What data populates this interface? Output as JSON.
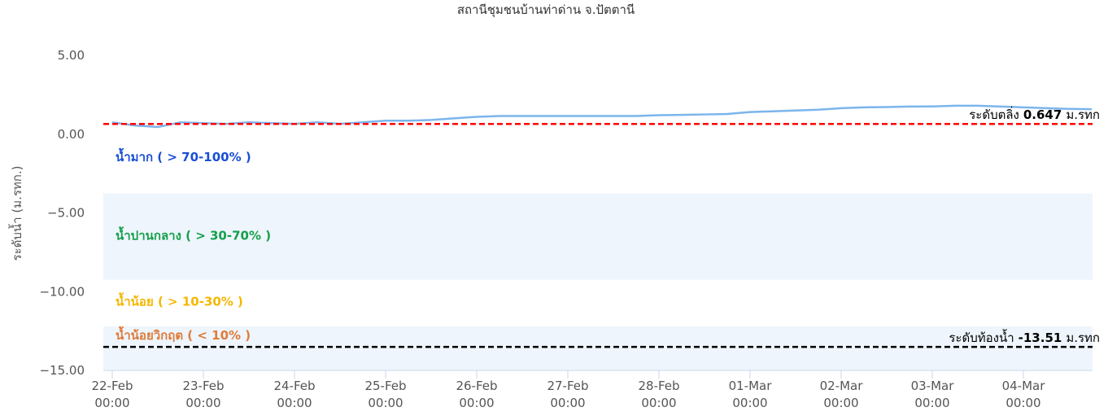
{
  "chart_data": {
    "type": "line",
    "title": "สถานีชุมชนบ้านท่าด่าน จ.ปัตตานี",
    "y_axis_label": "ระดับน้ำ (ม.รทก.)",
    "x": [
      "22-Feb 00:00",
      "22-Feb 06:00",
      "22-Feb 12:00",
      "22-Feb 18:00",
      "23-Feb 00:00",
      "23-Feb 06:00",
      "23-Feb 12:00",
      "23-Feb 18:00",
      "24-Feb 00:00",
      "24-Feb 06:00",
      "24-Feb 12:00",
      "24-Feb 18:00",
      "25-Feb 00:00",
      "25-Feb 06:00",
      "25-Feb 12:00",
      "25-Feb 18:00",
      "26-Feb 00:00",
      "26-Feb 06:00",
      "26-Feb 12:00",
      "26-Feb 18:00",
      "27-Feb 00:00",
      "27-Feb 06:00",
      "27-Feb 12:00",
      "27-Feb 18:00",
      "28-Feb 00:00",
      "28-Feb 06:00",
      "28-Feb 12:00",
      "28-Feb 18:00",
      "01-Mar 00:00",
      "01-Mar 06:00",
      "01-Mar 12:00",
      "01-Mar 18:00",
      "02-Mar 00:00",
      "02-Mar 06:00",
      "02-Mar 12:00",
      "02-Mar 18:00",
      "03-Mar 00:00",
      "03-Mar 06:00",
      "03-Mar 12:00",
      "03-Mar 18:00",
      "04-Mar 00:00",
      "04-Mar 06:00",
      "04-Mar 12:00",
      "04-Mar 18:00"
    ],
    "xticks": [
      "22-Feb 00:00",
      "23-Feb 00:00",
      "24-Feb 00:00",
      "25-Feb 00:00",
      "26-Feb 00:00",
      "27-Feb 00:00",
      "28-Feb 00:00",
      "01-Mar 00:00",
      "02-Mar 00:00",
      "03-Mar 00:00",
      "04-Mar 00:00"
    ],
    "series": [
      {
        "name": "ระดับน้ำ",
        "color": "#7cb5ec",
        "values": [
          0.75,
          0.55,
          0.45,
          0.75,
          0.7,
          0.65,
          0.75,
          0.7,
          0.65,
          0.75,
          0.65,
          0.75,
          0.85,
          0.85,
          0.9,
          1.0,
          1.1,
          1.15,
          1.15,
          1.15,
          1.15,
          1.15,
          1.15,
          1.15,
          1.2,
          1.22,
          1.25,
          1.28,
          1.4,
          1.45,
          1.5,
          1.55,
          1.65,
          1.7,
          1.72,
          1.75,
          1.76,
          1.8,
          1.8,
          1.75,
          1.7,
          1.65,
          1.6,
          1.58
        ]
      }
    ],
    "ylim": [
      -15,
      5
    ],
    "yticks": [
      {
        "value": 5,
        "label": "5.00"
      },
      {
        "value": 0,
        "label": "0.00"
      },
      {
        "value": -5,
        "label": "−5.00"
      },
      {
        "value": -10,
        "label": "−10.00"
      },
      {
        "value": -15,
        "label": "−15.00"
      }
    ],
    "grid": false,
    "plot_bands": [
      {
        "from": -3.77,
        "to": 5,
        "color": "#ffffff",
        "label": "น้ำมาก ( > 70-100% )",
        "label_color": "#1a4fd6"
      },
      {
        "from": -9.25,
        "to": -3.77,
        "color": "#eef5fc",
        "label": "น้ำปานกลาง ( > 30-70% )",
        "label_color": "#13a04a"
      },
      {
        "from": -12.2,
        "to": -9.25,
        "color": "#ffffff",
        "label": "น้ำน้อย ( > 10-30% )",
        "label_color": "#f5b700"
      },
      {
        "from": -15,
        "to": -12.2,
        "color": "#eef5fc",
        "label": "น้ำน้อยวิกฤต ( < 10% )",
        "label_color": "#e07b39"
      }
    ],
    "plot_lines": [
      {
        "value": 0.647,
        "color": "#ff0000",
        "prefix": "ระดับตลิ่ง",
        "suffix": "ม.รทก"
      },
      {
        "value": -13.51,
        "color": "#000000",
        "prefix": "ระดับท้องน้ำ",
        "suffix": "ม.รทก"
      }
    ]
  }
}
